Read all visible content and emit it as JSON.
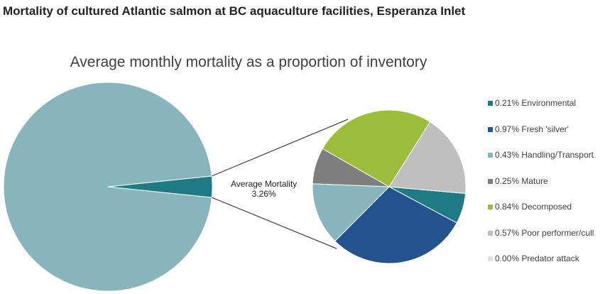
{
  "chart_data": {
    "type": "pie-of-pie",
    "title": "Mortality of cultured Atlantic salmon at BC aquaculture facilities, Esperanza Inlet",
    "subtitle": "Average monthly mortality as a proportion of inventory",
    "main_pie": {
      "average_label": "Average Mortality",
      "average_value": "3.26%",
      "average_percent": 3.26,
      "remainder_percent": 96.74,
      "colors": {
        "remainder": "#88b5bd",
        "average": "#1e7b84"
      }
    },
    "series": [
      {
        "name": "Environmental",
        "value": 0.21,
        "label": "0.21% Environmental",
        "color": "#1e7b84"
      },
      {
        "name": "Fresh 'silver'",
        "value": 0.97,
        "label": "0.97% Fresh 'silver'",
        "color": "#23538f"
      },
      {
        "name": "Handling/Transport",
        "value": 0.43,
        "label": "0.43% Handling/Transport",
        "color": "#88b5bd"
      },
      {
        "name": "Mature",
        "value": 0.25,
        "label": "0.25% Mature",
        "color": "#7f7f7f"
      },
      {
        "name": "Decomposed",
        "value": 0.84,
        "label": "0.84% Decomposed",
        "color": "#9cbd3b"
      },
      {
        "name": "Poor performer/cull",
        "value": 0.57,
        "label": "0.57% Poor performer/cull",
        "color": "#bfbfbf"
      },
      {
        "name": "Predator attack",
        "value": 0.0,
        "label": "0.00% Predator attack",
        "color": "#d8e6e8"
      }
    ],
    "legend": "right"
  }
}
